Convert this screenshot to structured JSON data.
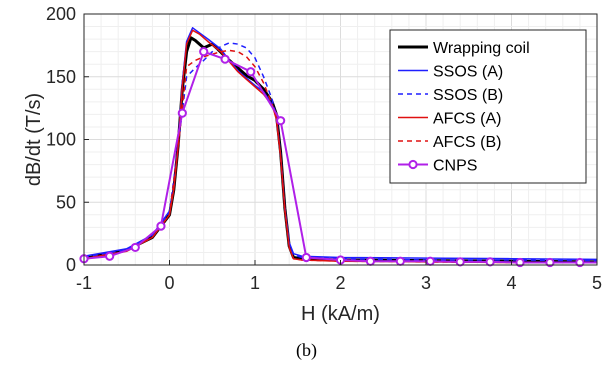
{
  "caption": "(b)",
  "chart_data": {
    "type": "line",
    "xlabel": "H (kA/m)",
    "ylabel": "dB/dt (T/s)",
    "xlim": [
      -1,
      5
    ],
    "ylim": [
      0,
      200
    ],
    "xticks": [
      -1,
      0,
      1,
      2,
      3,
      4,
      5
    ],
    "yticks": [
      0,
      50,
      100,
      150,
      200
    ],
    "grid": true,
    "legend_position": "top-right",
    "series": [
      {
        "name": "Wrapping coil",
        "color": "#000000",
        "dash": "solid",
        "width": 3,
        "points": [
          [
            -1,
            5
          ],
          [
            -0.5,
            12
          ],
          [
            -0.2,
            22
          ],
          [
            0,
            40
          ],
          [
            0.05,
            60
          ],
          [
            0.1,
            95
          ],
          [
            0.15,
            140
          ],
          [
            0.2,
            170
          ],
          [
            0.25,
            181
          ],
          [
            0.3,
            179
          ],
          [
            0.4,
            173
          ],
          [
            0.5,
            176
          ],
          [
            0.55,
            173
          ],
          [
            0.7,
            163
          ],
          [
            0.8,
            157
          ],
          [
            0.9,
            151
          ],
          [
            1.0,
            147
          ],
          [
            1.1,
            140
          ],
          [
            1.2,
            130
          ],
          [
            1.25,
            120
          ],
          [
            1.3,
            90
          ],
          [
            1.35,
            45
          ],
          [
            1.4,
            15
          ],
          [
            1.45,
            6
          ],
          [
            1.55,
            5
          ],
          [
            2,
            4
          ],
          [
            3,
            3.5
          ],
          [
            4,
            3
          ],
          [
            5,
            2.5
          ]
        ]
      },
      {
        "name": "SSOS (A)",
        "color": "#1f1fff",
        "dash": "solid",
        "width": 1.5,
        "points": [
          [
            -1,
            7
          ],
          [
            -0.5,
            13
          ],
          [
            -0.2,
            24
          ],
          [
            0,
            43
          ],
          [
            0.05,
            62
          ],
          [
            0.1,
            97
          ],
          [
            0.15,
            145
          ],
          [
            0.2,
            178
          ],
          [
            0.27,
            189
          ],
          [
            0.35,
            185
          ],
          [
            0.45,
            180
          ],
          [
            0.6,
            172
          ],
          [
            0.7,
            163
          ],
          [
            0.8,
            155
          ],
          [
            0.9,
            149
          ],
          [
            1.0,
            143
          ],
          [
            1.1,
            138
          ],
          [
            1.2,
            128
          ],
          [
            1.25,
            118
          ],
          [
            1.3,
            88
          ],
          [
            1.35,
            45
          ],
          [
            1.4,
            18
          ],
          [
            1.45,
            9
          ],
          [
            1.55,
            7
          ],
          [
            2,
            6
          ],
          [
            3,
            5.5
          ],
          [
            4,
            5
          ],
          [
            5,
            4.5
          ]
        ]
      },
      {
        "name": "SSOS (B)",
        "color": "#1f1fff",
        "dash": "5,4",
        "width": 1.5,
        "points": [
          [
            -1,
            6
          ],
          [
            -0.5,
            12
          ],
          [
            -0.2,
            23
          ],
          [
            0,
            42
          ],
          [
            0.1,
            95
          ],
          [
            0.2,
            150
          ],
          [
            0.3,
            157
          ],
          [
            0.4,
            163
          ],
          [
            0.5,
            170
          ],
          [
            0.6,
            174
          ],
          [
            0.7,
            177
          ],
          [
            0.8,
            176
          ],
          [
            0.9,
            173
          ],
          [
            1.0,
            165
          ],
          [
            1.1,
            150
          ],
          [
            1.2,
            132
          ],
          [
            1.25,
            118
          ],
          [
            1.3,
            88
          ],
          [
            1.35,
            45
          ],
          [
            1.4,
            17
          ],
          [
            1.45,
            8
          ],
          [
            1.55,
            6
          ],
          [
            2,
            5
          ],
          [
            3,
            4
          ],
          [
            4,
            4
          ],
          [
            5,
            3.5
          ]
        ]
      },
      {
        "name": "AFCS (A)",
        "color": "#e01010",
        "dash": "solid",
        "width": 1.5,
        "points": [
          [
            -1,
            5
          ],
          [
            -0.5,
            11
          ],
          [
            -0.2,
            22
          ],
          [
            0,
            40
          ],
          [
            0.05,
            60
          ],
          [
            0.1,
            94
          ],
          [
            0.15,
            142
          ],
          [
            0.2,
            176
          ],
          [
            0.27,
            187
          ],
          [
            0.35,
            184
          ],
          [
            0.45,
            178
          ],
          [
            0.6,
            170
          ],
          [
            0.7,
            162
          ],
          [
            0.8,
            154
          ],
          [
            0.9,
            148
          ],
          [
            1.0,
            142
          ],
          [
            1.1,
            136
          ],
          [
            1.2,
            127
          ],
          [
            1.25,
            117
          ],
          [
            1.3,
            87
          ],
          [
            1.35,
            44
          ],
          [
            1.4,
            14
          ],
          [
            1.45,
            5
          ],
          [
            1.55,
            4
          ],
          [
            2,
            3
          ],
          [
            3,
            2.5
          ],
          [
            4,
            2
          ],
          [
            5,
            2
          ]
        ]
      },
      {
        "name": "AFCS (B)",
        "color": "#e01010",
        "dash": "5,4",
        "width": 1.5,
        "points": [
          [
            -1,
            5
          ],
          [
            -0.5,
            11
          ],
          [
            -0.2,
            22
          ],
          [
            0,
            40
          ],
          [
            0.1,
            93
          ],
          [
            0.2,
            158
          ],
          [
            0.3,
            163
          ],
          [
            0.4,
            166
          ],
          [
            0.5,
            168
          ],
          [
            0.6,
            170
          ],
          [
            0.7,
            171
          ],
          [
            0.8,
            170
          ],
          [
            0.9,
            166
          ],
          [
            1.0,
            158
          ],
          [
            1.1,
            145
          ],
          [
            1.2,
            128
          ],
          [
            1.25,
            116
          ],
          [
            1.3,
            86
          ],
          [
            1.35,
            43
          ],
          [
            1.4,
            14
          ],
          [
            1.45,
            5
          ],
          [
            1.55,
            4
          ],
          [
            2,
            3
          ],
          [
            3,
            2.5
          ],
          [
            4,
            2
          ],
          [
            5,
            2
          ]
        ]
      },
      {
        "name": "CNPS",
        "color": "#b020e8",
        "dash": "solid",
        "width": 2,
        "marker": "circle",
        "points": [
          [
            -1,
            5
          ],
          [
            -0.7,
            7
          ],
          [
            -0.4,
            14
          ],
          [
            -0.1,
            31
          ],
          [
            0.15,
            121
          ],
          [
            0.4,
            170
          ],
          [
            0.65,
            164
          ],
          [
            0.95,
            154
          ],
          [
            1.3,
            115
          ],
          [
            1.6,
            6
          ],
          [
            2.0,
            4
          ],
          [
            2.35,
            3
          ],
          [
            2.7,
            3
          ],
          [
            3.05,
            3
          ],
          [
            3.4,
            2.5
          ],
          [
            3.75,
            2.5
          ],
          [
            4.1,
            2
          ],
          [
            4.45,
            2
          ],
          [
            4.8,
            2
          ],
          [
            5,
            2
          ]
        ],
        "marker_x": [
          -1,
          -0.7,
          -0.4,
          -0.1,
          0.15,
          0.4,
          0.65,
          0.95,
          1.3,
          1.6,
          2.0,
          2.35,
          2.7,
          3.05,
          3.4,
          3.75,
          4.1,
          4.45,
          4.8
        ]
      }
    ]
  }
}
